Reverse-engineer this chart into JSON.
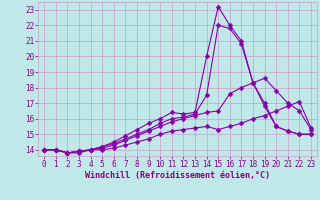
{
  "background_color": "#c0e8e8",
  "grid_color": "#c8a0c8",
  "line_color": "#8800aa",
  "marker": "D",
  "markersize": 2.5,
  "linewidth": 0.8,
  "xlabel": "Windchill (Refroidissement éolien,°C)",
  "xlabel_color": "#880088",
  "xlabel_fontsize": 6.0,
  "tick_color": "#880088",
  "tick_fontsize": 5.5,
  "ylim": [
    13.6,
    23.5
  ],
  "xlim": [
    -0.5,
    23.5
  ],
  "yticks": [
    14,
    15,
    16,
    17,
    18,
    19,
    20,
    21,
    22,
    23
  ],
  "xticks": [
    0,
    1,
    2,
    3,
    4,
    5,
    6,
    7,
    8,
    9,
    10,
    11,
    12,
    13,
    14,
    15,
    16,
    17,
    18,
    19,
    20,
    21,
    22,
    23
  ],
  "series": [
    [
      14.0,
      14.0,
      13.8,
      13.8,
      14.0,
      14.0,
      14.1,
      14.3,
      14.5,
      14.7,
      15.0,
      15.2,
      15.3,
      15.4,
      15.5,
      15.3,
      15.5,
      15.7,
      16.0,
      16.2,
      16.5,
      16.8,
      17.1,
      15.4
    ],
    [
      14.0,
      14.0,
      13.8,
      13.9,
      14.0,
      14.1,
      14.3,
      14.6,
      14.9,
      15.2,
      15.5,
      15.8,
      16.0,
      16.2,
      16.4,
      16.5,
      17.6,
      18.0,
      18.3,
      18.6,
      17.8,
      17.0,
      16.5,
      15.3
    ],
    [
      14.0,
      14.0,
      13.8,
      13.9,
      14.0,
      14.2,
      14.4,
      14.7,
      15.0,
      15.3,
      15.7,
      16.0,
      16.1,
      16.3,
      17.5,
      22.0,
      21.8,
      20.8,
      18.3,
      17.0,
      15.5,
      15.2,
      15.0,
      15.0
    ],
    [
      14.0,
      14.0,
      13.8,
      13.9,
      14.0,
      14.2,
      14.5,
      14.9,
      15.3,
      15.7,
      16.0,
      16.4,
      16.3,
      16.4,
      20.0,
      23.2,
      22.0,
      21.0,
      18.3,
      16.8,
      15.5,
      15.2,
      15.0,
      15.0
    ]
  ]
}
